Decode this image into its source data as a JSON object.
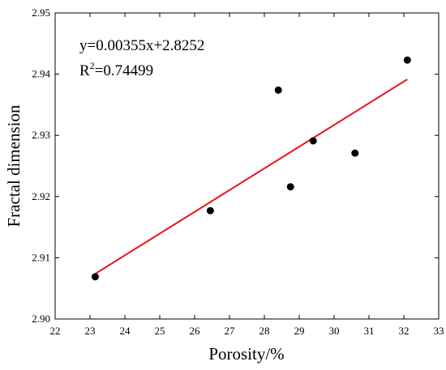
{
  "chart_data": {
    "type": "scatter",
    "xlabel": "Porosity/%",
    "ylabel": "Fractal dimension",
    "xlim": [
      22,
      33
    ],
    "ylim": [
      2.9,
      2.95
    ],
    "xticks": [
      22,
      23,
      24,
      25,
      26,
      27,
      28,
      29,
      30,
      31,
      32,
      33
    ],
    "yticks": [
      2.9,
      2.91,
      2.92,
      2.93,
      2.94,
      2.95
    ],
    "x_tick_labels": [
      "22",
      "23",
      "24",
      "25",
      "26",
      "27",
      "28",
      "29",
      "30",
      "31",
      "32",
      "33"
    ],
    "y_tick_labels": [
      "2.90",
      "2.91",
      "2.92",
      "2.93",
      "2.94",
      "2.95"
    ],
    "points": [
      {
        "x": 23.15,
        "y": 2.9069
      },
      {
        "x": 26.45,
        "y": 2.9177
      },
      {
        "x": 28.4,
        "y": 2.9374
      },
      {
        "x": 28.75,
        "y": 2.9216
      },
      {
        "x": 29.4,
        "y": 2.9291
      },
      {
        "x": 30.6,
        "y": 2.9271
      },
      {
        "x": 32.1,
        "y": 2.9423
      }
    ],
    "fit": {
      "slope": 0.00355,
      "intercept": 2.8252,
      "x_range": [
        23.15,
        32.1
      ],
      "color": "#e8141c"
    },
    "annotation": {
      "equation": "y=0.00355x+2.8252",
      "r2_prefix": "R",
      "r2_sup": "2",
      "r2_value": "=0.74499"
    },
    "grid": false,
    "point_color": "#000000"
  }
}
